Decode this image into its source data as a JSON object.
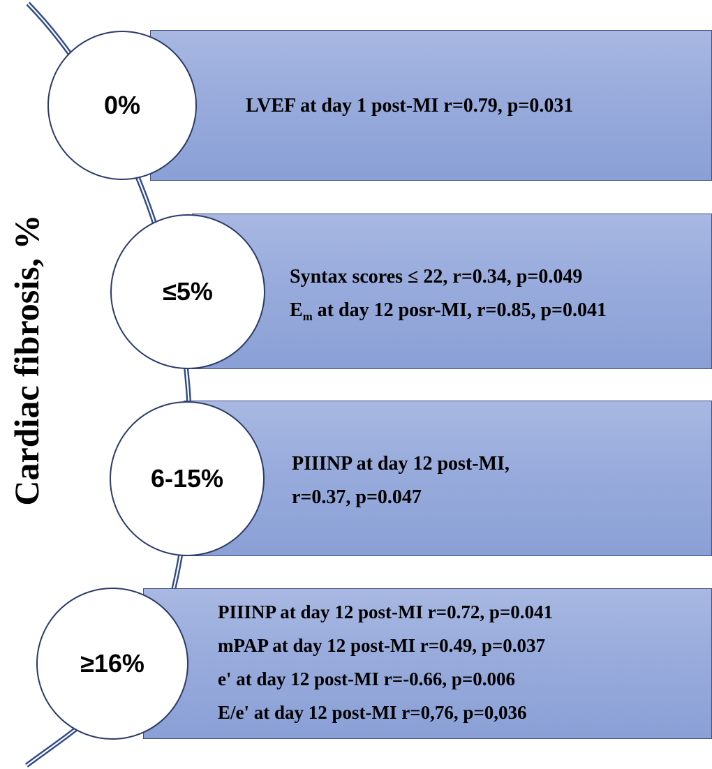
{
  "axis_label": "Cardiac fibrosis, %",
  "colors": {
    "box_top": "#a8b8e2",
    "box_bottom": "#8aa0d6",
    "box_border": "#3f4f80",
    "arc": "#2f4a8a",
    "circle_fill": "#ffffff"
  },
  "levels": [
    {
      "range": "0%",
      "findings": [
        {
          "text": "LVEF at day 1 post-MI r=0.79, p=0.031"
        }
      ]
    },
    {
      "range": "≤5%",
      "findings": [
        {
          "text": "Syntax scores ≤ 22, r=0.34, p=0.049"
        },
        {
          "pre": "E",
          "sub": "m",
          "post": " at day 12 posr-MI, r=0.85, p=0.041"
        }
      ]
    },
    {
      "range": "6-15%",
      "findings": [
        {
          "text": "PIIINP at day 12 post-MI,"
        },
        {
          "text": "r=0.37, p=0.047"
        }
      ]
    },
    {
      "range": "≥16%",
      "findings": [
        {
          "text": "PIIINP at day 12  post-MI r=0.72, p=0.041"
        },
        {
          "text": "mPAP at day 12  post-MI  r=0.49, p=0.037"
        },
        {
          "text": "e' at day 12  post-MI r=-0.66, p=0.006"
        },
        {
          "text": "E/e' at day 12  post-MI r=0,76, p=0,036"
        }
      ]
    }
  ]
}
